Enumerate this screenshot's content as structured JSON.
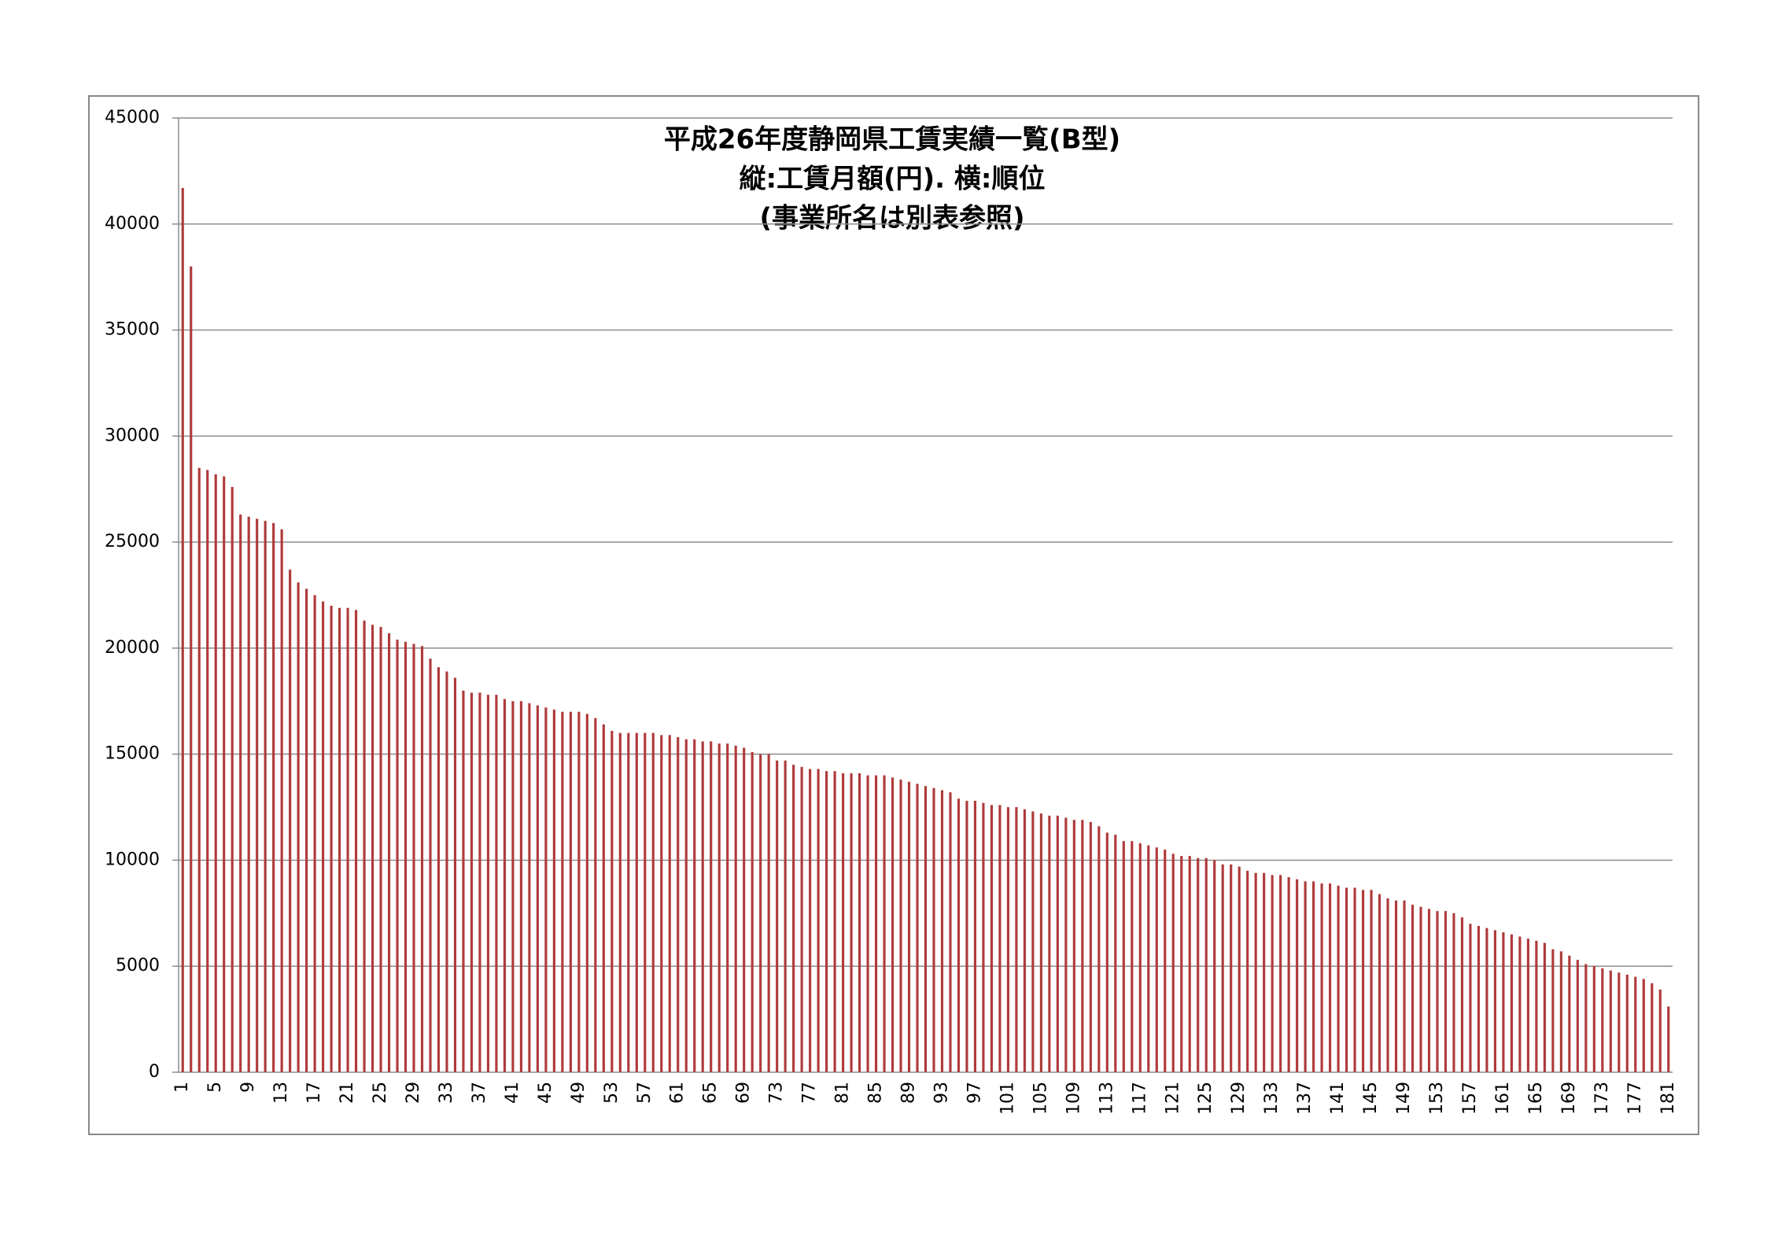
{
  "chart_data": {
    "type": "bar",
    "title_lines": [
      "平成26年度静岡県工賃実績一覧(B型)",
      "縦:工賃月額(円). 横:順位",
      "(事業所名は別表参照)"
    ],
    "color": "#b03a3a",
    "ylim": [
      0,
      45000
    ],
    "yticks": [
      0,
      5000,
      10000,
      15000,
      20000,
      25000,
      30000,
      35000,
      40000,
      45000
    ],
    "grid": true,
    "categories": [
      1,
      null,
      null,
      null,
      5,
      null,
      null,
      null,
      9,
      null,
      null,
      null,
      13,
      null,
      null,
      null,
      17,
      null,
      null,
      null,
      21,
      null,
      null,
      null,
      25,
      null,
      null,
      null,
      29,
      null,
      null,
      null,
      33,
      null,
      null,
      null,
      37,
      null,
      null,
      null,
      41,
      null,
      null,
      null,
      45,
      null,
      null,
      null,
      49,
      null,
      null,
      null,
      53,
      null,
      null,
      null,
      57,
      null,
      null,
      null,
      61,
      null,
      null,
      null,
      65,
      null,
      null,
      null,
      69,
      null,
      null,
      null,
      73,
      null,
      null,
      null,
      77,
      null,
      null,
      null,
      81,
      null,
      null,
      null,
      85,
      null,
      null,
      null,
      89,
      null,
      null,
      null,
      93,
      null,
      null,
      null,
      97,
      null,
      null,
      null,
      101,
      null,
      null,
      null,
      105,
      null,
      null,
      null,
      109,
      null,
      null,
      null,
      113,
      null,
      null,
      null,
      117,
      null,
      null,
      null,
      121,
      null,
      null,
      null,
      125,
      null,
      null,
      null,
      129,
      null,
      null,
      null,
      133,
      null,
      null,
      null,
      137,
      null,
      null,
      null,
      141,
      null,
      null,
      null,
      145,
      null,
      null,
      null,
      149,
      null,
      null,
      null,
      153,
      null,
      null,
      null,
      157,
      null,
      null,
      null,
      161,
      null,
      null,
      null,
      165,
      null,
      null,
      null,
      169,
      null,
      null,
      null,
      173,
      null,
      null,
      null,
      177,
      null,
      null,
      null,
      181
    ],
    "values": [
      41700,
      38000,
      28500,
      28400,
      28200,
      28100,
      27600,
      26300,
      26200,
      26100,
      26000,
      25900,
      25600,
      23700,
      23100,
      22800,
      22500,
      22200,
      22000,
      21900,
      21900,
      21800,
      21300,
      21100,
      21000,
      20700,
      20400,
      20300,
      20200,
      20100,
      19500,
      19100,
      18900,
      18600,
      18000,
      17900,
      17900,
      17800,
      17800,
      17600,
      17500,
      17500,
      17400,
      17300,
      17200,
      17100,
      17000,
      17000,
      17000,
      16900,
      16700,
      16400,
      16100,
      16000,
      16000,
      16000,
      16000,
      16000,
      15900,
      15900,
      15800,
      15700,
      15700,
      15600,
      15600,
      15500,
      15500,
      15400,
      15300,
      15100,
      15000,
      15000,
      14700,
      14700,
      14500,
      14400,
      14300,
      14300,
      14200,
      14200,
      14100,
      14100,
      14100,
      14000,
      14000,
      14000,
      13900,
      13800,
      13700,
      13600,
      13500,
      13400,
      13300,
      13200,
      12900,
      12800,
      12800,
      12700,
      12600,
      12600,
      12500,
      12500,
      12400,
      12300,
      12200,
      12100,
      12100,
      12000,
      11900,
      11900,
      11800,
      11600,
      11300,
      11200,
      10900,
      10900,
      10800,
      10700,
      10600,
      10500,
      10300,
      10200,
      10200,
      10100,
      10100,
      10000,
      9800,
      9800,
      9700,
      9500,
      9400,
      9400,
      9300,
      9300,
      9200,
      9100,
      9000,
      9000,
      8900,
      8900,
      8800,
      8700,
      8700,
      8600,
      8600,
      8400,
      8200,
      8100,
      8100,
      7900,
      7800,
      7700,
      7600,
      7600,
      7500,
      7300,
      7000,
      6900,
      6800,
      6700,
      6600,
      6500,
      6400,
      6300,
      6200,
      6100,
      5800,
      5700,
      5500,
      5300,
      5100,
      5000,
      4900,
      4800,
      4700,
      4600,
      4500,
      4400,
      4200,
      3900,
      3100
    ]
  }
}
